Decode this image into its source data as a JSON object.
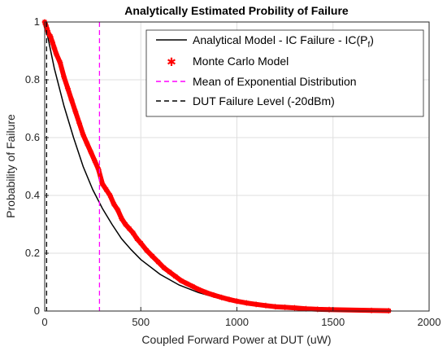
{
  "chart_data": {
    "type": "line",
    "title": "Analytically Estimated Probility of Failure",
    "xlabel": "Coupled Forward Power at DUT (uW)",
    "ylabel": "Probability of Failure",
    "xlim": [
      0,
      2000
    ],
    "ylim": [
      0,
      1
    ],
    "xticks": [
      "0",
      "500",
      "1000",
      "1500",
      "2000"
    ],
    "xtick_values": [
      0,
      500,
      1000,
      1500,
      2000
    ],
    "yticks": [
      "0",
      "0.2",
      "0.4",
      "0.6",
      "0.8",
      "1"
    ],
    "ytick_values": [
      0,
      0.2,
      0.4,
      0.6,
      0.8,
      1
    ],
    "grid": true,
    "legend_position": "top-right",
    "series": [
      {
        "name": "Analytical Model - IC Failure - IC(P",
        "name_subscript": "f",
        "name_suffix": ")",
        "kind": "line",
        "color": "#000000",
        "x": [
          0,
          50,
          100,
          150,
          200,
          250,
          300,
          350,
          400,
          450,
          500,
          600,
          700,
          800,
          900,
          1000,
          1100,
          1200,
          1300,
          1400,
          1500,
          1600,
          1700,
          1800
        ],
        "y": [
          1.0,
          0.84,
          0.71,
          0.6,
          0.5,
          0.42,
          0.355,
          0.3,
          0.25,
          0.212,
          0.178,
          0.127,
          0.09,
          0.064,
          0.045,
          0.032,
          0.023,
          0.016,
          0.012,
          0.008,
          0.006,
          0.004,
          0.003,
          0.002
        ]
      },
      {
        "name": "Monte Carlo Model",
        "kind": "scatter",
        "color": "#ff0000",
        "marker": "*",
        "x": [
          0,
          5,
          10,
          15,
          20,
          30,
          40,
          50,
          60,
          80,
          100,
          120,
          140,
          160,
          180,
          200,
          220,
          240,
          260,
          280,
          300,
          320,
          340,
          360,
          380,
          400,
          420,
          440,
          460,
          480,
          500,
          530,
          560,
          590,
          620,
          650,
          680,
          710,
          740,
          770,
          800,
          840,
          880,
          920,
          960,
          1000,
          1050,
          1100,
          1150,
          1200,
          1250,
          1300,
          1360,
          1420,
          1480,
          1700,
          1790
        ],
        "y": [
          1.0,
          0.99,
          0.98,
          0.97,
          0.96,
          0.95,
          0.93,
          0.91,
          0.89,
          0.86,
          0.81,
          0.77,
          0.73,
          0.69,
          0.65,
          0.61,
          0.58,
          0.55,
          0.52,
          0.49,
          0.44,
          0.42,
          0.4,
          0.37,
          0.35,
          0.32,
          0.3,
          0.285,
          0.27,
          0.25,
          0.235,
          0.21,
          0.19,
          0.17,
          0.15,
          0.135,
          0.12,
          0.105,
          0.095,
          0.085,
          0.075,
          0.064,
          0.055,
          0.047,
          0.04,
          0.034,
          0.028,
          0.023,
          0.019,
          0.015,
          0.013,
          0.011,
          0.008,
          0.006,
          0.005,
          0.002,
          0.001
        ]
      },
      {
        "name": "Mean of Exponential Distribution",
        "kind": "vline",
        "color": "#ff00ff",
        "x": 285
      },
      {
        "name": "DUT Failure Level (-20dBm)",
        "kind": "vline",
        "color": "#000000",
        "x": 10
      }
    ]
  }
}
